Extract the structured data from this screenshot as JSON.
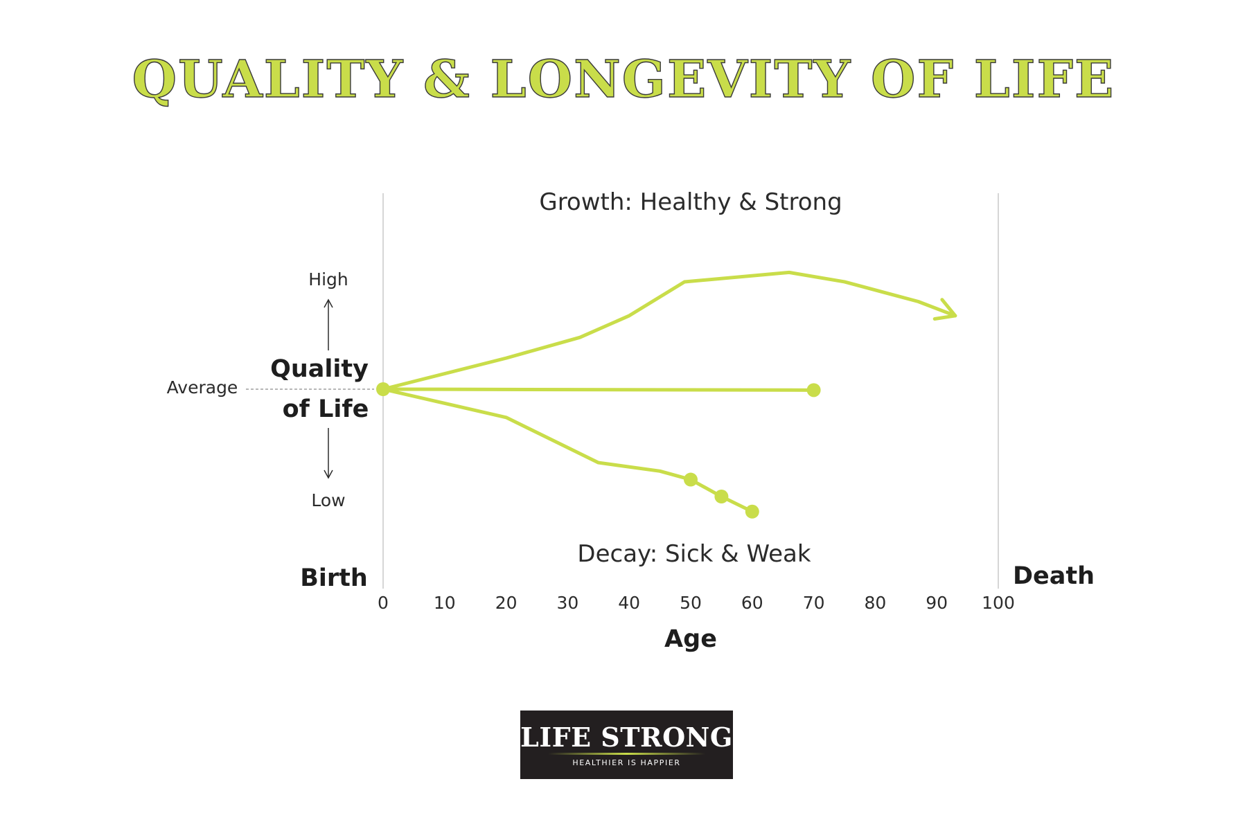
{
  "title": "QUALITY & LONGEVITY OF LIFE",
  "colors": {
    "line": "#c9dd4a",
    "title_fill": "#c9dd4a",
    "title_outline": "#3a3a3a",
    "logo_bg": "#231f20"
  },
  "chart_data": {
    "type": "line",
    "xlabel": "Age",
    "ylabel": "Quality of Life",
    "ylabel_lines": [
      "Quality",
      "of Life"
    ],
    "xlim": [
      0,
      100
    ],
    "x_ticks": [
      0,
      10,
      20,
      30,
      40,
      50,
      60,
      70,
      80,
      90,
      100
    ],
    "y_scale": {
      "high": "High",
      "average": "Average",
      "low": "Low"
    },
    "start_label": "Birth",
    "end_label": "Death",
    "annotations": {
      "top": "Growth: Healthy & Strong",
      "bottom": "Decay: Sick & Weak"
    },
    "grid": false,
    "series": [
      {
        "style": "arrow",
        "points": [
          [
            0,
            0
          ],
          [
            20,
            0.33
          ],
          [
            32,
            0.55
          ],
          [
            40,
            0.78
          ],
          [
            49,
            1.14
          ],
          [
            66,
            1.24
          ],
          [
            75,
            1.14
          ],
          [
            87,
            0.93
          ],
          [
            93,
            0.78
          ]
        ]
      },
      {
        "style": "dot-end",
        "points": [
          [
            0,
            0
          ],
          [
            70,
            -0.01
          ]
        ]
      },
      {
        "style": "dots-end",
        "points": [
          [
            0,
            0
          ],
          [
            20,
            -0.3
          ],
          [
            35,
            -0.78
          ],
          [
            45,
            -0.87
          ],
          [
            50,
            -0.96
          ],
          [
            55,
            -1.14
          ],
          [
            60,
            -1.3
          ]
        ],
        "marker_x": [
          50,
          55,
          60
        ]
      }
    ]
  },
  "logo": {
    "name": "LIFE STRONG",
    "tagline": "HEALTHIER IS HAPPIER"
  }
}
